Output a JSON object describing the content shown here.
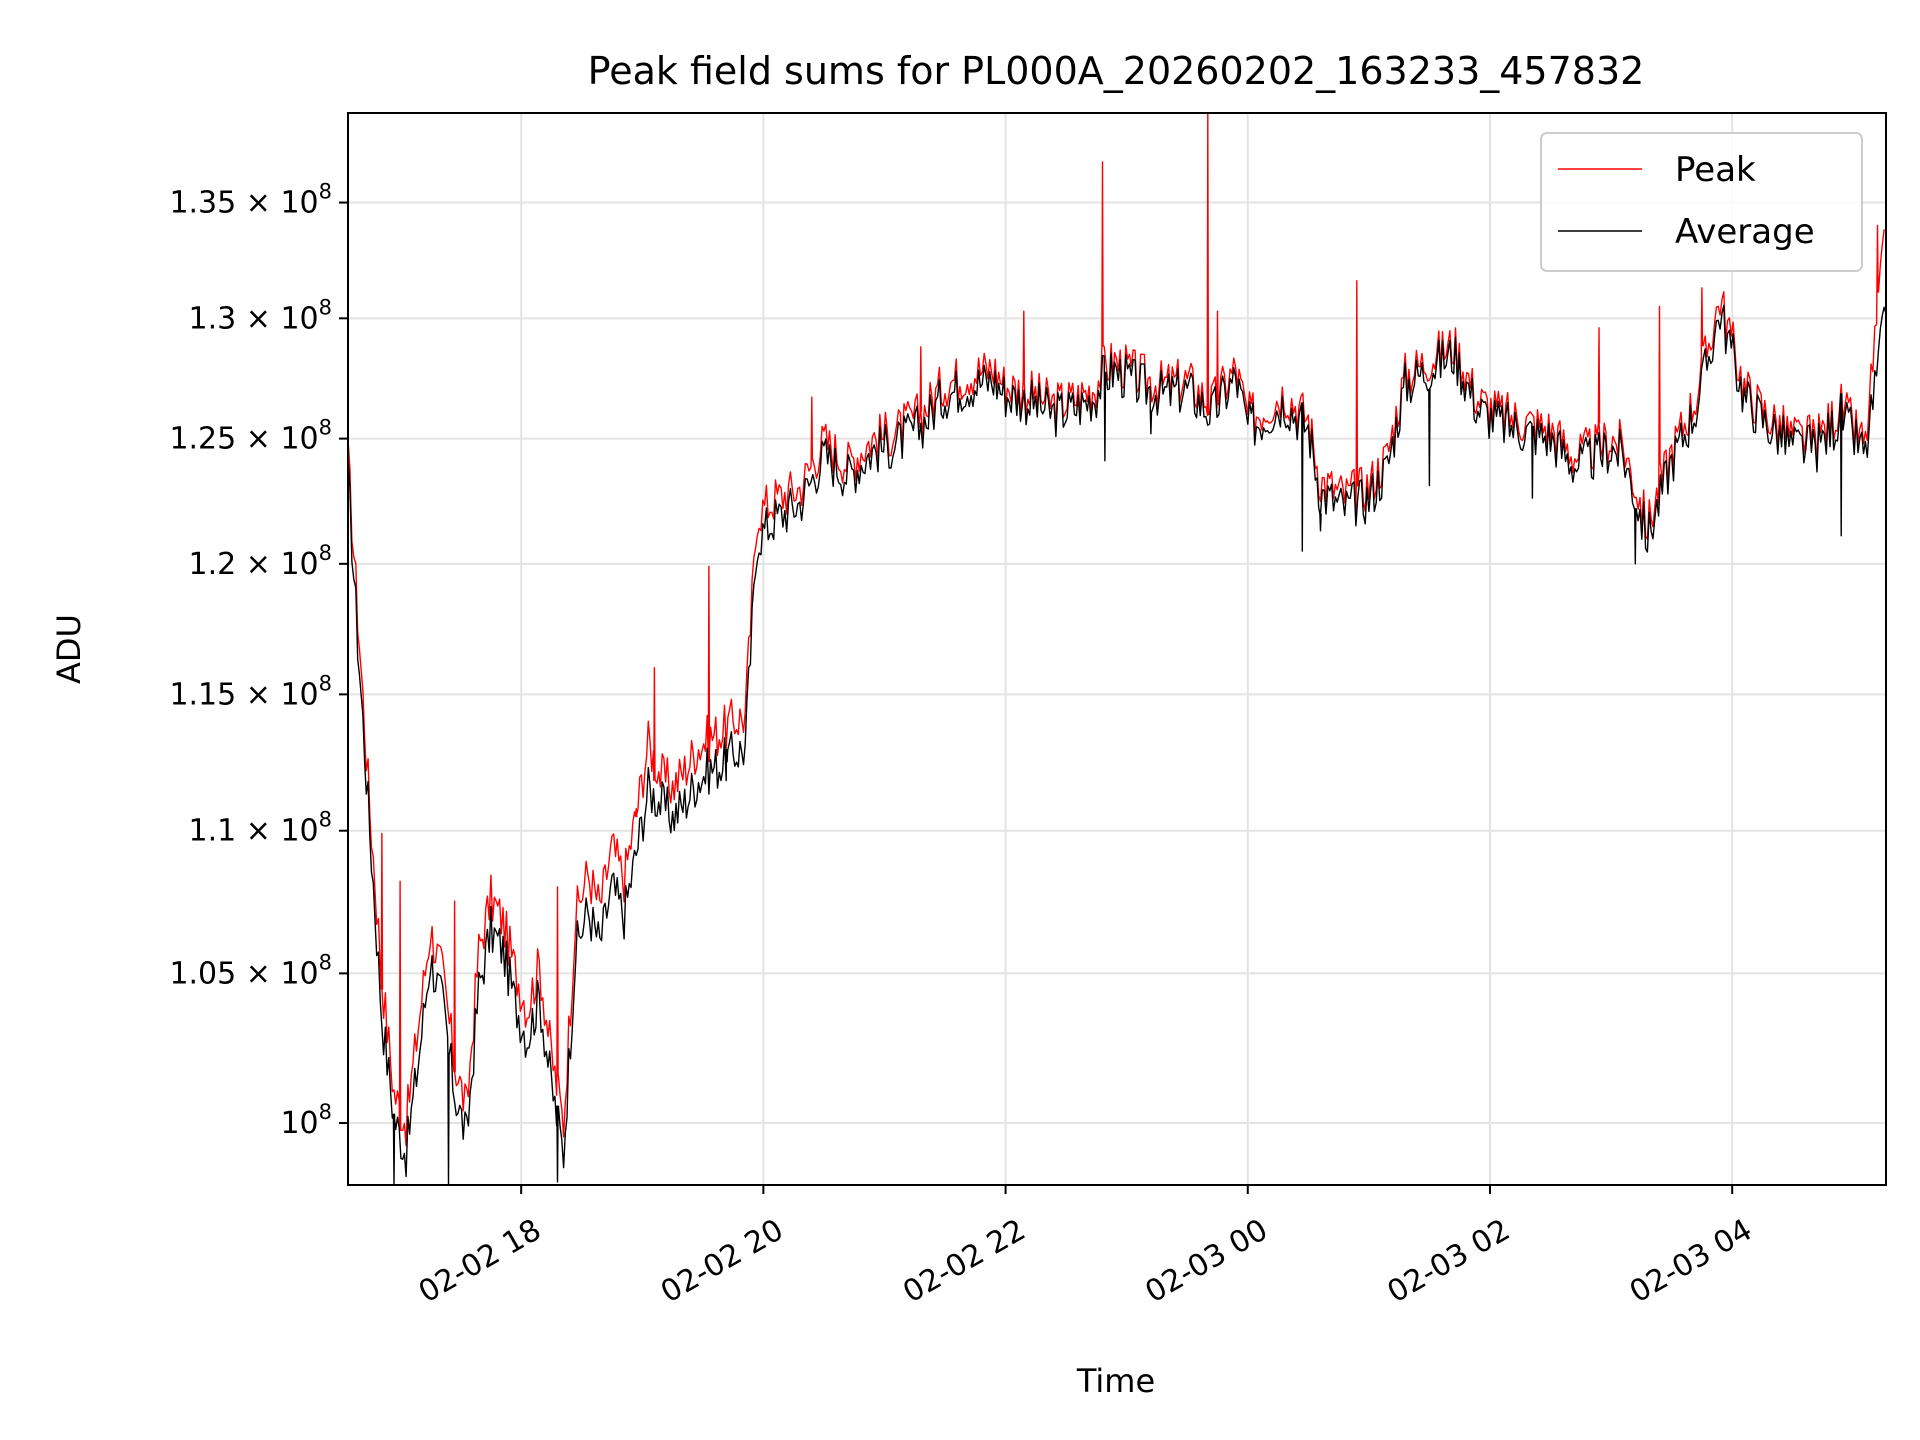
{
  "chart_data": {
    "type": "line",
    "title": "Peak field sums for PL000A_20260202_163233_457832",
    "xlabel": "Time",
    "ylabel": "ADU",
    "yscale": "log",
    "grid": true,
    "legend_position": "top-right",
    "xlim_hours": [
      16.57,
      29.27
    ],
    "ylim": [
      98000000.0,
      139000000.0
    ],
    "x_ticks": [
      {
        "hour": 18,
        "label": "02-02 18"
      },
      {
        "hour": 20,
        "label": "02-02 20"
      },
      {
        "hour": 22,
        "label": "02-02 22"
      },
      {
        "hour": 24,
        "label": "02-03 00"
      },
      {
        "hour": 26,
        "label": "02-03 02"
      },
      {
        "hour": 28,
        "label": "02-03 04"
      }
    ],
    "y_ticks": [
      {
        "value": 100000000.0,
        "base": "10",
        "exp": "8"
      },
      {
        "value": 105000000.0,
        "base": "1.05 × 10",
        "exp": "8"
      },
      {
        "value": 110000000.0,
        "base": "1.1 × 10",
        "exp": "8"
      },
      {
        "value": 115000000.0,
        "base": "1.15 × 10",
        "exp": "8"
      },
      {
        "value": 120000000.0,
        "base": "1.2 × 10",
        "exp": "8"
      },
      {
        "value": 125000000.0,
        "base": "1.25 × 10",
        "exp": "8"
      },
      {
        "value": 130000000.0,
        "base": "1.3 × 10",
        "exp": "8"
      },
      {
        "value": 135000000.0,
        "base": "1.35 × 10",
        "exp": "8"
      }
    ],
    "series": [
      {
        "name": "Peak",
        "color": "#ff0000"
      },
      {
        "name": "Average",
        "color": "#000000"
      }
    ],
    "x_hours": [
      16.57,
      16.65,
      16.75,
      16.85,
      16.95,
      17.05,
      17.15,
      17.25,
      17.35,
      17.45,
      17.55,
      17.65,
      17.75,
      17.85,
      17.95,
      18.05,
      18.15,
      18.25,
      18.35,
      18.45,
      18.55,
      18.65,
      18.75,
      18.85,
      18.95,
      19.05,
      19.15,
      19.25,
      19.35,
      19.45,
      19.55,
      19.65,
      19.75,
      19.85,
      19.95,
      20.1,
      20.3,
      20.5,
      20.7,
      20.9,
      21.1,
      21.3,
      21.5,
      21.7,
      21.9,
      22.0,
      22.2,
      22.4,
      22.6,
      22.75,
      22.8,
      22.9,
      23.1,
      23.3,
      23.5,
      23.7,
      23.9,
      24.0,
      24.1,
      24.3,
      24.5,
      24.6,
      24.8,
      25.0,
      25.15,
      25.3,
      25.5,
      25.7,
      25.9,
      26.1,
      26.3,
      26.5,
      26.7,
      26.9,
      27.0,
      27.1,
      27.3,
      27.5,
      27.7,
      27.9,
      28.1,
      28.3,
      28.5,
      28.7,
      28.9,
      29.1,
      29.27
    ],
    "average_values": [
      123500000.0,
      117000000.0,
      110000000.0,
      103500000.0,
      100200000.0,
      99000000.0,
      102000000.0,
      105500000.0,
      104000000.0,
      101000000.0,
      99500000.0,
      104500000.0,
      106500000.0,
      105800000.0,
      104000000.0,
      102800000.0,
      104200000.0,
      101200000.0,
      99000000.0,
      105800000.0,
      107200000.0,
      106000000.0,
      108000000.0,
      107000000.0,
      109200000.0,
      111500000.0,
      111000000.0,
      110500000.0,
      111000000.0,
      111800000.0,
      112200000.0,
      112400000.0,
      112800000.0,
      113000000.0,
      121000000.0,
      121800000.0,
      122400000.0,
      124300000.0,
      123500000.0,
      124500000.0,
      124800000.0,
      125500000.0,
      126800000.0,
      127200000.0,
      127400000.0,
      126800000.0,
      126500000.0,
      126000000.0,
      126300000.0,
      126800000.0,
      127500000.0,
      127800000.0,
      127200000.0,
      126800000.0,
      127000000.0,
      126000000.0,
      127500000.0,
      125500000.0,
      125700000.0,
      126500000.0,
      125400000.0,
      122800000.0,
      122200000.0,
      122600000.0,
      123800000.0,
      127200000.0,
      127900000.0,
      128500000.0,
      126200000.0,
      125600000.0,
      125300000.0,
      125000000.0,
      123900000.0,
      124300000.0,
      124600000.0,
      124300000.0,
      121000000.0,
      124100000.0,
      126200000.0,
      130300000.0,
      126700000.0,
      125500000.0,
      124700000.0,
      124600000.0,
      125900000.0,
      124300000.0,
      130200000.0
    ],
    "peak_values": [
      124200000.0,
      118000000.0,
      110800000.0,
      104800000.0,
      101000000.0,
      100000000.0,
      103200000.0,
      106500000.0,
      105000000.0,
      102000000.0,
      100400000.0,
      105800000.0,
      107600000.0,
      106800000.0,
      105100000.0,
      103800000.0,
      105300000.0,
      102200000.0,
      100000000.0,
      107000000.0,
      108500000.0,
      107300000.0,
      109400000.0,
      108300000.0,
      110600000.0,
      113200000.0,
      112000000.0,
      111600000.0,
      112200000.0,
      113000000.0,
      113400000.0,
      113600000.0,
      114000000.0,
      114200000.0,
      122000000.0,
      122600000.0,
      123000000.0,
      124900000.0,
      124000000.0,
      125000000.0,
      125300000.0,
      126000000.0,
      127300000.0,
      127700000.0,
      127900000.0,
      127200000.0,
      126900000.0,
      126400000.0,
      126700000.0,
      127200000.0,
      127900000.0,
      128200000.0,
      127600000.0,
      127200000.0,
      127400000.0,
      126400000.0,
      127900000.0,
      125900000.0,
      126100000.0,
      126900000.0,
      125800000.0,
      123300000.0,
      122700000.0,
      123100000.0,
      124300000.0,
      127600000.0,
      128300000.0,
      128900000.0,
      126600000.0,
      126000000.0,
      125700000.0,
      125400000.0,
      124300000.0,
      124700000.0,
      125000000.0,
      124700000.0,
      121500000.0,
      124500000.0,
      126700000.0,
      130900000.0,
      127100000.0,
      125900000.0,
      125100000.0,
      125000000.0,
      126300000.0,
      124700000.0,
      133800000.0
    ],
    "peak_spikes": [
      {
        "hour": 16.85,
        "value": 109900000.0
      },
      {
        "hour": 17.0,
        "value": 108200000.0
      },
      {
        "hour": 17.45,
        "value": 107500000.0
      },
      {
        "hour": 18.3,
        "value": 108000000.0
      },
      {
        "hour": 18.95,
        "value": 110800000.0
      },
      {
        "hour": 19.1,
        "value": 116000000.0
      },
      {
        "hour": 19.55,
        "value": 119900000.0
      },
      {
        "hour": 20.4,
        "value": 126700000.0
      },
      {
        "hour": 21.3,
        "value": 128800000.0
      },
      {
        "hour": 22.15,
        "value": 130300000.0
      },
      {
        "hour": 22.8,
        "value": 136800000.0
      },
      {
        "hour": 23.67,
        "value": 139000000.0
      },
      {
        "hour": 23.75,
        "value": 130300000.0
      },
      {
        "hour": 24.9,
        "value": 131600000.0
      },
      {
        "hour": 26.9,
        "value": 129600000.0
      },
      {
        "hour": 27.4,
        "value": 130500000.0
      },
      {
        "hour": 27.75,
        "value": 131300000.0
      },
      {
        "hour": 29.2,
        "value": 134000000.0
      }
    ],
    "average_dips": [
      {
        "hour": 22.82,
        "value": 124100000.0
      },
      {
        "hour": 23.2,
        "value": 125200000.0
      },
      {
        "hour": 24.45,
        "value": 120500000.0
      },
      {
        "hour": 24.6,
        "value": 121300000.0
      },
      {
        "hour": 25.5,
        "value": 123100000.0
      },
      {
        "hour": 26.35,
        "value": 122600000.0
      },
      {
        "hour": 27.2,
        "value": 120000000.0
      },
      {
        "hour": 28.9,
        "value": 121100000.0
      },
      {
        "hour": 19.7,
        "value": 112500000.0
      },
      {
        "hour": 18.3,
        "value": 98100000.0
      },
      {
        "hour": 17.4,
        "value": 98000000.0
      },
      {
        "hour": 16.95,
        "value": 98000000.0
      }
    ]
  }
}
